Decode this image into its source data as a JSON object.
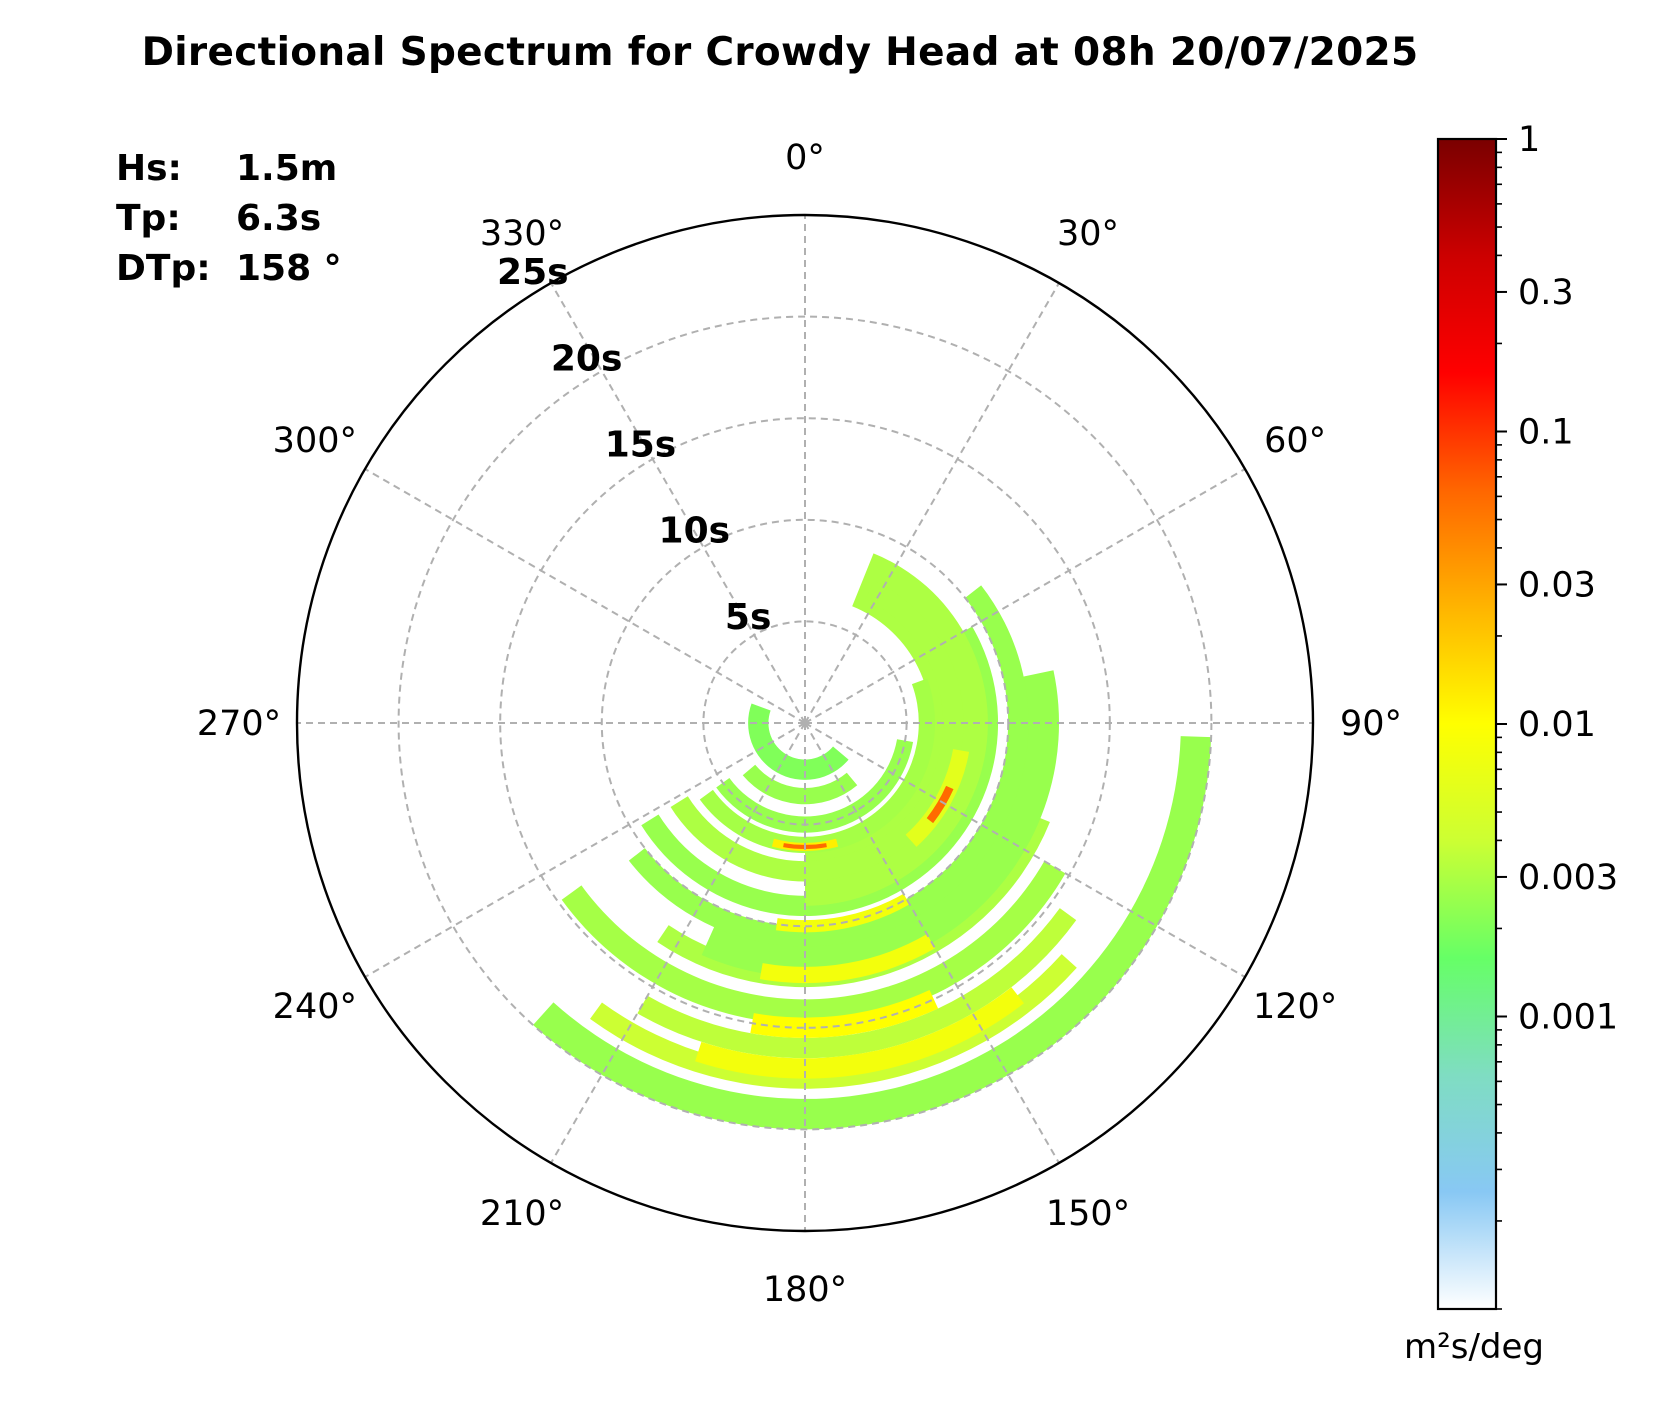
{
  "title": "Directional Spectrum for Crowdy Head at 08h 20/07/2025",
  "stats": [
    {
      "key": "Hs:",
      "value": "1.5m"
    },
    {
      "key": "Tp:",
      "value": "6.3s"
    },
    {
      "key": "DTp:",
      "value": "158 °"
    }
  ],
  "chart_data": {
    "type": "heatmap",
    "projection": "polar",
    "theta_direction": "clockwise",
    "theta_zero": "top",
    "angular_ticks": [
      "0°",
      "30°",
      "60°",
      "90°",
      "120°",
      "150°",
      "180°",
      "210°",
      "240°",
      "270°",
      "300°",
      "330°"
    ],
    "radial_ticks": [
      {
        "value": 5,
        "label": "5s"
      },
      {
        "value": 10,
        "label": "10s"
      },
      {
        "value": 15,
        "label": "15s"
      },
      {
        "value": 20,
        "label": "20s"
      },
      {
        "value": 25,
        "label": "25s"
      }
    ],
    "radial_max": 25,
    "grid": true,
    "colorbar": {
      "scale": "log",
      "range": [
        0.0001,
        1
      ],
      "tick_values": [
        0.001,
        0.003,
        0.01,
        0.03,
        0.1,
        0.3,
        1
      ],
      "tick_labels": [
        "0.001",
        "0.003",
        "0.01",
        "0.03",
        "0.1",
        "0.3",
        "1"
      ],
      "units_label": "m²s/deg",
      "colors": [
        "#ffffff",
        "#88c8f4",
        "#7fddc2",
        "#66ff66",
        "#ccff33",
        "#ffff00",
        "#ffb400",
        "#ff6600",
        "#ff0000",
        "#cc0000",
        "#7a0000"
      ]
    },
    "energy_regions": [
      {
        "theta_from": 92,
        "theta_to": 222,
        "period_from": 20,
        "period_to": 18.5,
        "level": 0.0025
      },
      {
        "theta_from": 132,
        "theta_to": 216,
        "period_from": 18,
        "period_to": 17,
        "level": 0.004
      },
      {
        "theta_from": 126,
        "theta_to": 210,
        "period_from": 16.5,
        "period_to": 15.5,
        "level": 0.0035
      },
      {
        "theta_from": 120,
        "theta_to": 234,
        "period_from": 14.8,
        "period_to": 13.6,
        "level": 0.0028
      },
      {
        "theta_from": 112,
        "theta_to": 214,
        "period_from": 13,
        "period_to": 12,
        "level": 0.003
      },
      {
        "theta_from": 78,
        "theta_to": 204,
        "period_from": 12.5,
        "period_to": 10.6,
        "level": 0.0025
      },
      {
        "theta_from": 52,
        "theta_to": 232,
        "period_from": 11,
        "period_to": 10,
        "level": 0.0025
      },
      {
        "theta_from": 60,
        "theta_to": 238,
        "period_from": 9.5,
        "period_to": 8.5,
        "level": 0.0025
      },
      {
        "theta_from": 22,
        "theta_to": 180,
        "period_from": 9,
        "period_to": 6.2,
        "level": 0.003
      },
      {
        "theta_from": 26,
        "theta_to": 238,
        "period_from": 7.8,
        "period_to": 6.8,
        "level": 0.003
      },
      {
        "theta_from": 70,
        "theta_to": 234,
        "period_from": 6.4,
        "period_to": 5.6,
        "level": 0.0028
      },
      {
        "theta_from": 100,
        "theta_to": 234,
        "period_from": 5.4,
        "period_to": 4.6,
        "level": 0.0025
      },
      {
        "theta_from": 140,
        "theta_to": 230,
        "period_from": 4,
        "period_to": 3.2,
        "level": 0.0025
      },
      {
        "theta_from": 130,
        "theta_to": 290,
        "period_from": 2.8,
        "period_to": 1.8,
        "level": 0.002
      },
      {
        "theta_from": 142,
        "theta_to": 198,
        "period_from": 17.5,
        "period_to": 16.5,
        "level": 0.008
      },
      {
        "theta_from": 155,
        "theta_to": 190,
        "period_from": 15.5,
        "period_to": 14.5,
        "level": 0.01
      },
      {
        "theta_from": 150,
        "theta_to": 190,
        "period_from": 12.8,
        "period_to": 12,
        "level": 0.008
      },
      {
        "theta_from": 150,
        "theta_to": 188,
        "period_from": 10.3,
        "period_to": 9.7,
        "level": 0.008
      },
      {
        "theta_from": 100,
        "theta_to": 138,
        "period_from": 8.2,
        "period_to": 7.4,
        "level": 0.006
      },
      {
        "theta_from": 114,
        "theta_to": 128,
        "period_from": 8,
        "period_to": 7.6,
        "level": 0.06
      },
      {
        "theta_from": 165,
        "theta_to": 195,
        "period_from": 6.3,
        "period_to": 5.9,
        "level": 0.012
      },
      {
        "theta_from": 170,
        "theta_to": 190,
        "period_from": 6.2,
        "period_to": 6,
        "level": 0.06
      }
    ]
  }
}
